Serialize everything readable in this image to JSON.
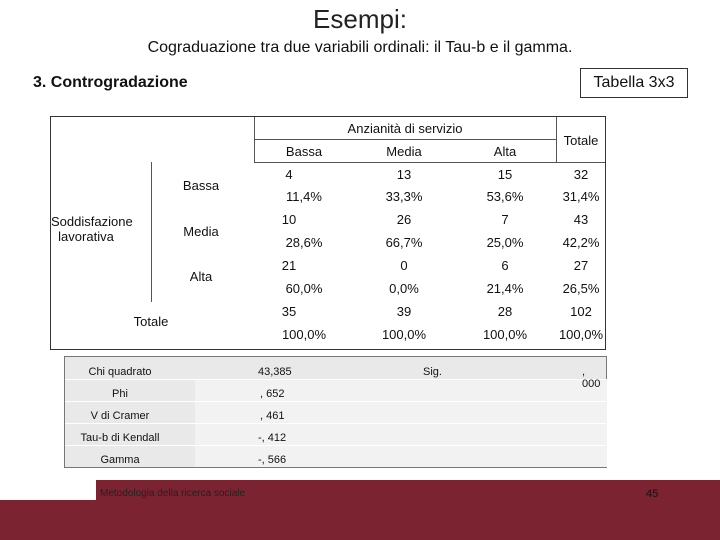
{
  "title": "Esempi:",
  "subtitle": "Cograduazione tra due variabili ordinali: il Tau-b e il gamma.",
  "section": "3.  Controgradazione",
  "badge": "Tabella 3x3",
  "table": {
    "col_group": "Anzianità di servizio",
    "columns": [
      "Bassa",
      "Media",
      "Alta"
    ],
    "total_label": "Totale",
    "row_group": "Soddisfazione lavorativa",
    "rows": [
      {
        "label": "Bassa",
        "counts": [
          "4",
          "13",
          "15",
          "32"
        ],
        "percents": [
          "11,4%",
          "33,3%",
          "53,6%",
          "31,4%"
        ]
      },
      {
        "label": "Media",
        "counts": [
          "10",
          "26",
          "7",
          "43"
        ],
        "percents": [
          "28,6%",
          "66,7%",
          "25,0%",
          "42,2%"
        ]
      },
      {
        "label": "Alta",
        "counts": [
          "21",
          "0",
          "6",
          "27"
        ],
        "percents": [
          "60,0%",
          "0,0%",
          "21,4%",
          "26,5%"
        ]
      }
    ],
    "total_row": {
      "label": "Totale",
      "counts": [
        "35",
        "39",
        "28",
        "102"
      ],
      "percents": [
        "100,0%",
        "100,0%",
        "100,0%",
        "100,0%"
      ]
    }
  },
  "stats": {
    "chi_label": "Chi quadrato",
    "chi_value": "43,385",
    "sig_label": "Sig.",
    "sig_value": ", 000",
    "phi_label": "Phi",
    "phi_value": ", 652",
    "v_label": "V di Cramer",
    "v_value": ", 461",
    "tau_label": "Tau-b di Kendall",
    "tau_value": "-, 412",
    "gamma_label": "Gamma",
    "gamma_value": "-, 566"
  },
  "footer": {
    "text": "Metodologia della ricerca sociale",
    "page": "45"
  }
}
